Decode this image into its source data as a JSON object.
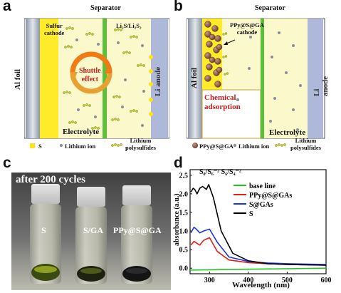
{
  "panel_a": {
    "letter": "a",
    "separator": "Separator",
    "sulfur_cathode": "Sulfur\ncathode",
    "li2s_label": "Li₂S/Li₂S₂",
    "shuttle": "Shuttle\neffect",
    "al_foil": "Al foil",
    "li_anode": "Li anode",
    "electrolyte": "Electrolyte",
    "legend": {
      "s": "S",
      "li_ion": "Lithium ion",
      "polysulfides": "Lithium\npolysulfides"
    }
  },
  "panel_b": {
    "letter": "b",
    "separator": "Separator",
    "cathode": "PPy@S@GA\ncathode",
    "al_foil": "Al foil",
    "li_anode": "Li anode",
    "chemical": "Chemical\nadsorption",
    "electrolyte": "Electrolyte",
    "legend": {
      "ppy": "PPy@S@GA",
      "li_ion": "Lithium ion",
      "polysulfides": "Lithium\npolysulfides"
    }
  },
  "panel_c": {
    "letter": "c",
    "caption": "after 200 cycles",
    "vials": [
      "S",
      "S/GA",
      "PPy@S@GA"
    ]
  },
  "panel_d": {
    "letter": "d",
    "colors": {
      "base": "#22c422",
      "ppy": "#e0201a",
      "sga": "#1a36e0",
      "s": "#000000"
    }
  },
  "chart_data": {
    "type": "line",
    "title": "",
    "xlabel": "Wavelength (nm)",
    "ylabel": "absorbance (a.u.)",
    "xlim": [
      250,
      600
    ],
    "ylim": [
      -0.15,
      2.65
    ],
    "xticks": [
      "300",
      "400",
      "500",
      "600"
    ],
    "yticks": [
      "0.0",
      "0.5",
      "1.0",
      "1.5",
      "2.0",
      "2.5"
    ],
    "annotation": "S₈/S₆⁻² S₆/S₄⁻²",
    "legend_position": "top-right",
    "series": [
      {
        "name": "base line",
        "x": [
          250,
          600
        ],
        "values": [
          -0.05,
          0.0
        ]
      },
      {
        "name": "PPy@S@GAs",
        "x": [
          252,
          260,
          266,
          275,
          285,
          300,
          320,
          350,
          400,
          450,
          500,
          600
        ],
        "values": [
          0.62,
          0.72,
          0.68,
          0.62,
          0.75,
          0.82,
          0.45,
          0.22,
          0.15,
          0.12,
          0.1,
          0.08
        ]
      },
      {
        "name": "S@GAs",
        "x": [
          252,
          260,
          266,
          275,
          285,
          300,
          320,
          350,
          400,
          450,
          500,
          600
        ],
        "values": [
          0.95,
          1.1,
          1.05,
          0.95,
          1.0,
          1.05,
          0.7,
          0.3,
          0.18,
          0.14,
          0.12,
          0.1
        ]
      },
      {
        "name": "S",
        "x": [
          252,
          258,
          262,
          268,
          275,
          282,
          292,
          298,
          310,
          330,
          360,
          400,
          450,
          500,
          600
        ],
        "values": [
          2.05,
          2.15,
          2.12,
          2.0,
          2.15,
          2.2,
          2.12,
          2.25,
          1.9,
          1.0,
          0.4,
          0.2,
          0.12,
          0.1,
          0.08
        ]
      }
    ]
  }
}
